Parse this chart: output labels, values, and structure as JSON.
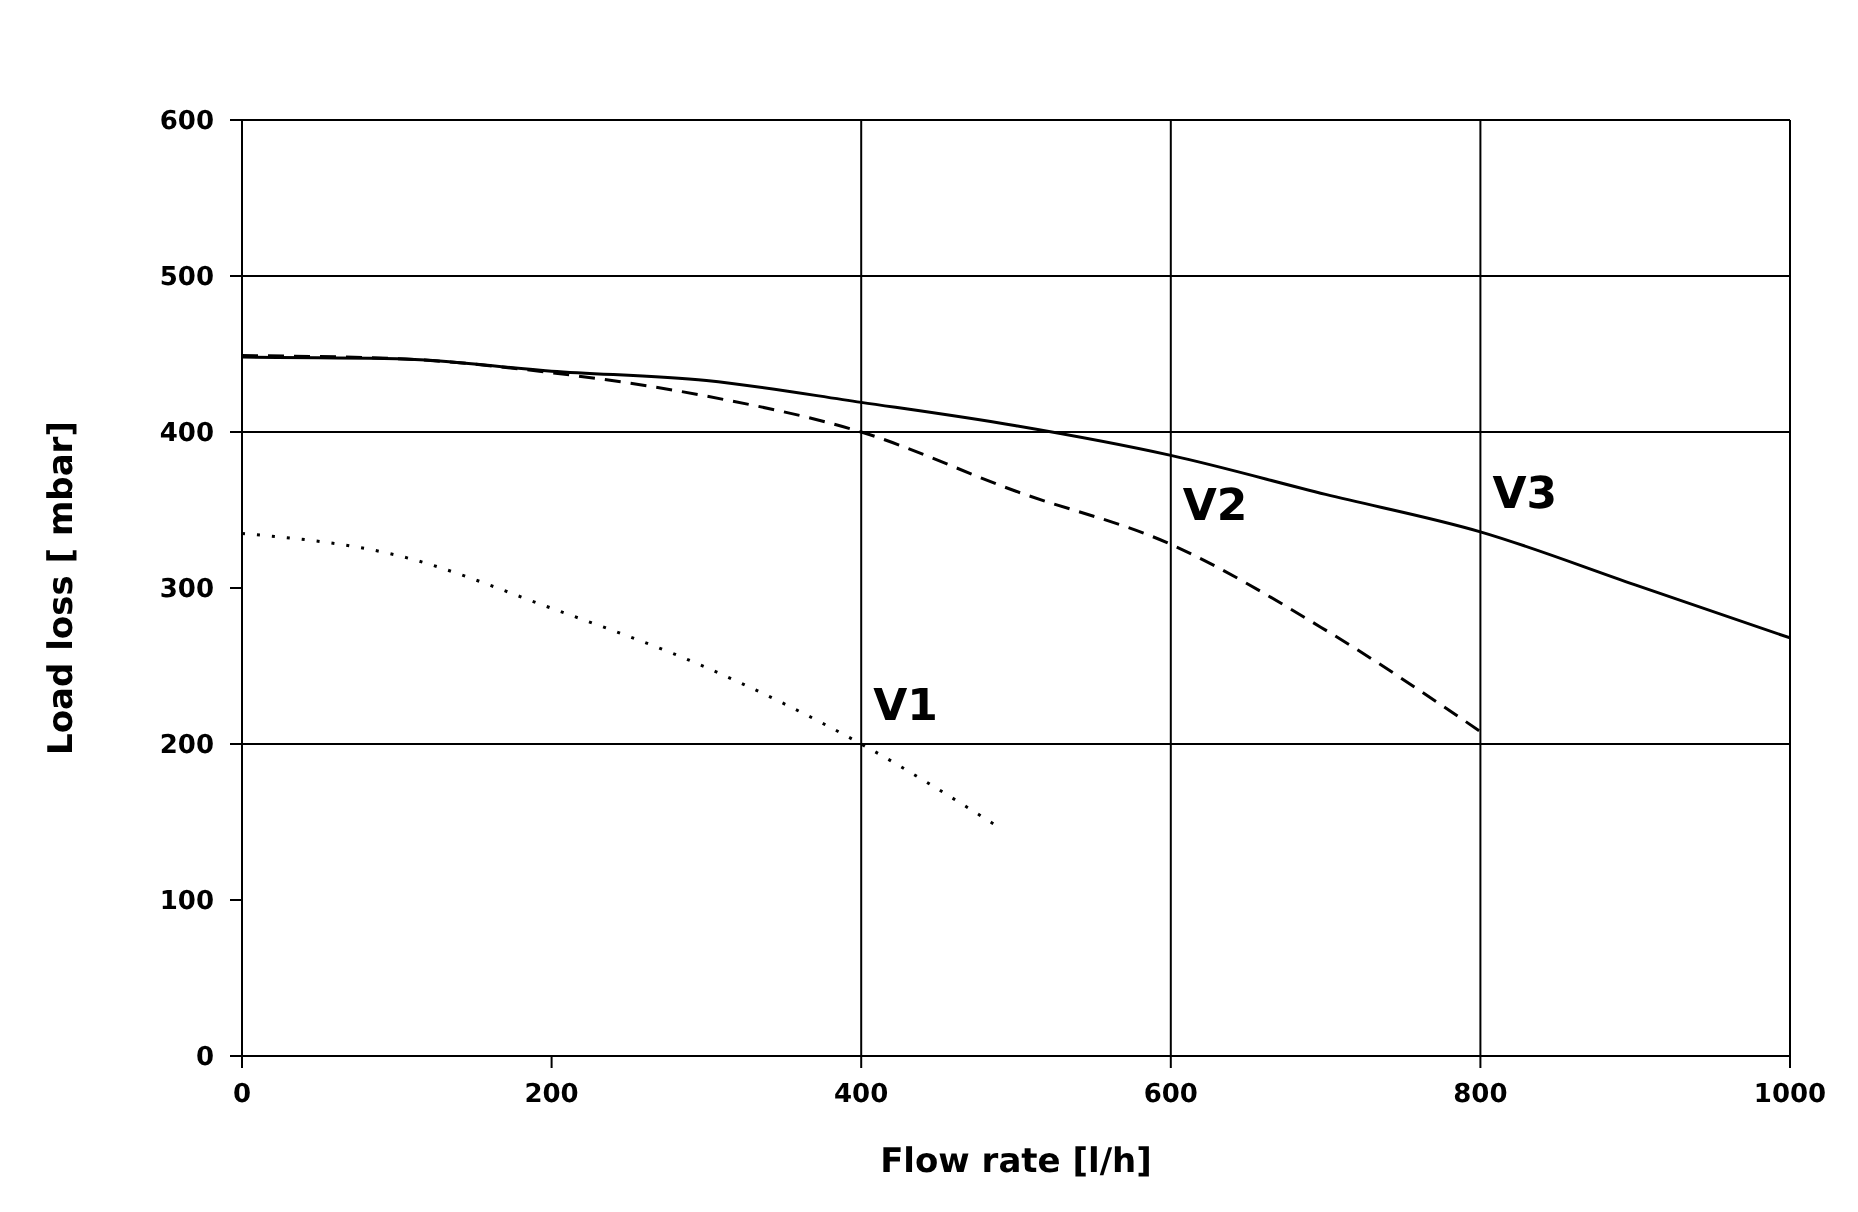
{
  "chart_data": {
    "type": "line",
    "xlabel": "Flow rate [l/h]",
    "ylabel": "Load loss [ mbar]",
    "xlim": [
      0,
      1000
    ],
    "xticks": [
      0,
      200,
      400,
      600,
      800,
      1000
    ],
    "ylim": [
      0,
      600
    ],
    "yticks": [
      0,
      100,
      200,
      300,
      400,
      500,
      600
    ],
    "grid": false,
    "legend": false,
    "marker": "none",
    "ref_lines": [
      {
        "axis": "y",
        "value": 200,
        "color": "#000000"
      },
      {
        "axis": "y",
        "value": 400,
        "color": "#000000"
      },
      {
        "axis": "y",
        "value": 500,
        "color": "#000000"
      },
      {
        "axis": "x",
        "value": 400,
        "color": "#000000"
      },
      {
        "axis": "x",
        "value": 600,
        "color": "#000000"
      },
      {
        "axis": "x",
        "value": 800,
        "color": "#000000"
      }
    ],
    "series": [
      {
        "name": "V1",
        "color": "#000000",
        "line_style": "dotted",
        "x": [
          0,
          100,
          200,
          300,
          400,
          490
        ],
        "values": [
          335,
          321,
          287,
          249,
          200,
          146
        ]
      },
      {
        "name": "V2",
        "color": "#000000",
        "line_style": "dashed",
        "x": [
          0,
          100,
          200,
          300,
          400,
          500,
          600,
          700,
          800
        ],
        "values": [
          449,
          447,
          438,
          423,
          400,
          362,
          328,
          273,
          208
        ]
      },
      {
        "name": "V3",
        "color": "#000000",
        "line_style": "solid",
        "x": [
          0,
          100,
          200,
          300,
          400,
          500,
          600,
          700,
          800,
          900,
          1000
        ],
        "values": [
          448,
          447,
          439,
          433,
          419,
          404,
          385,
          360,
          336,
          302,
          268
        ]
      }
    ]
  }
}
